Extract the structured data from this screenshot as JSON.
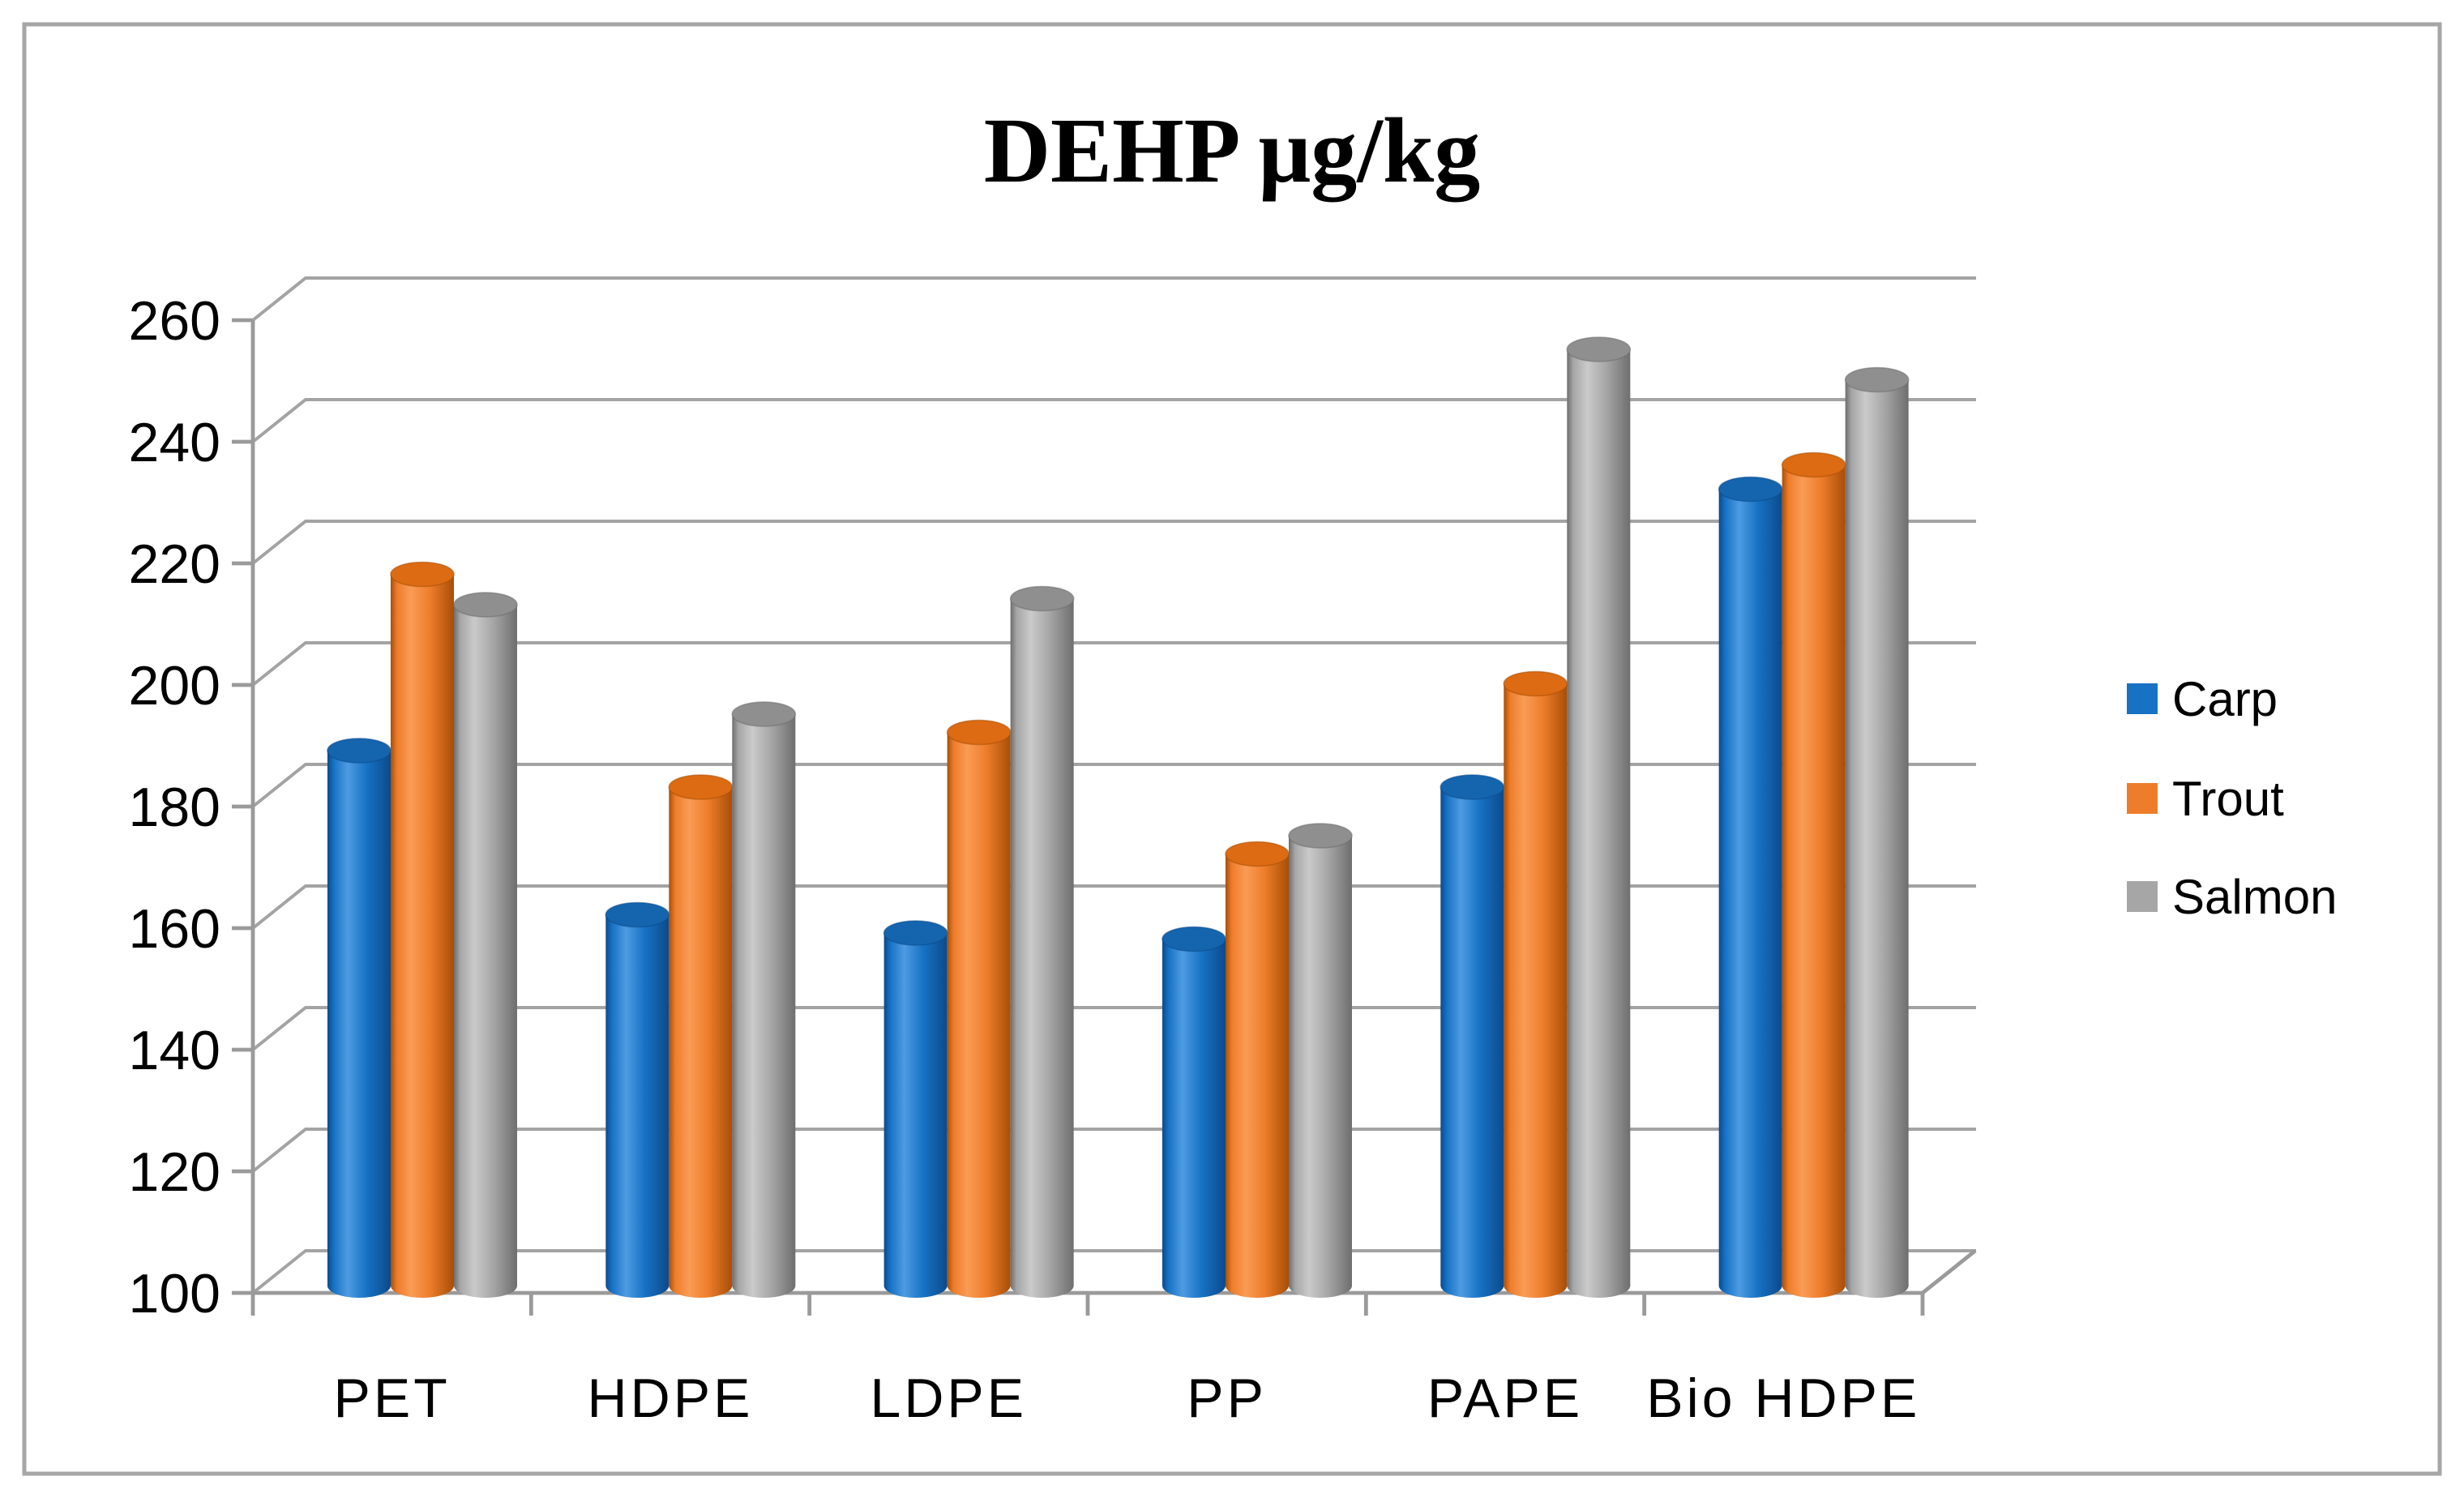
{
  "figure": {
    "border_color": "#a6a6a6",
    "background": "#ffffff"
  },
  "chart_data": {
    "type": "bar",
    "style": "3d-cylinder-clustered",
    "title": "DEHP μg/kg",
    "categories": [
      "PET",
      "HDPE",
      "LDPE",
      "PP",
      "PAPE",
      "Bio HDPE"
    ],
    "series": [
      {
        "name": "Carp",
        "values": [
          188,
          161,
          158,
          157,
          182,
          231
        ],
        "color": {
          "base": "#1772c4",
          "light": "#4e9be2",
          "dark": "#0b4a8c",
          "top": "#1565ae"
        }
      },
      {
        "name": "Trout",
        "values": [
          217,
          182,
          191,
          171,
          199,
          235
        ],
        "color": {
          "base": "#ee7d2b",
          "light": "#f99c55",
          "dark": "#a84e06",
          "top": "#dc6b13"
        }
      },
      {
        "name": "Salmon",
        "values": [
          212,
          194,
          213,
          174,
          254,
          249
        ],
        "color": {
          "base": "#a6a6a6",
          "light": "#cacaca",
          "dark": "#6e6e6e",
          "top": "#8f8f8f"
        }
      }
    ],
    "y_axis": {
      "min": 100,
      "max": 260,
      "step": 20,
      "tick_labels": [
        "100",
        "120",
        "140",
        "160",
        "180",
        "200",
        "220",
        "240",
        "260"
      ]
    },
    "grid": true,
    "gridline_color": "#a3a3a3",
    "axis_color": "#9a9a9a",
    "legend_position": "right",
    "legend_labels": [
      "Carp",
      "Trout",
      "Salmon"
    ]
  }
}
